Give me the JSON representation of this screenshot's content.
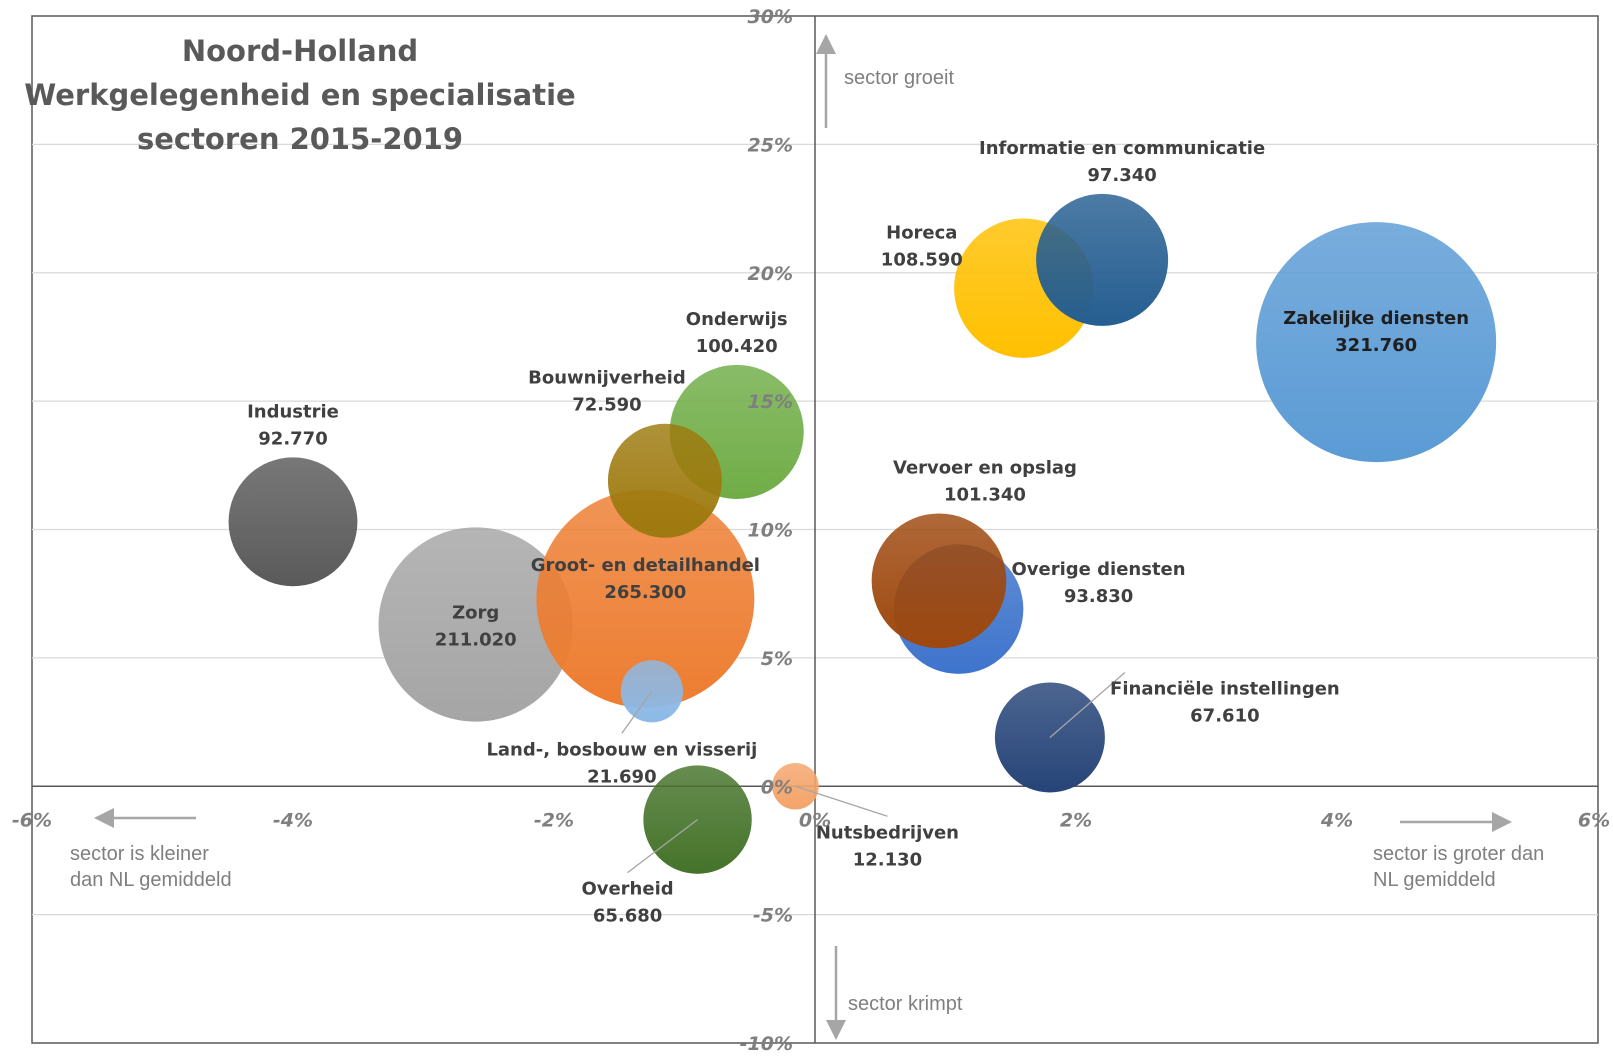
{
  "chart_data": {
    "type": "bubble",
    "title_lines": [
      "Noord-Holland",
      "Werkgelegenheid en specialisatie",
      "sectoren 2015-2019"
    ],
    "x_tick_labels": [
      "-6%",
      "-4%",
      "-2%",
      "0%",
      "2%",
      "4%",
      "6%"
    ],
    "y_tick_labels": [
      "30%",
      "25%",
      "20%",
      "15%",
      "10%",
      "5%",
      "0%",
      "-5%",
      "-10%"
    ],
    "xlim": [
      -6,
      6
    ],
    "ylim": [
      -10,
      30
    ],
    "grid": "horizontal",
    "annotations": {
      "up": "sector groeit",
      "down": "sector krimpt",
      "left_line1": "sector is kleiner",
      "left_line2": "dan NL gemiddeld",
      "right_line1": "sector is groter dan",
      "right_line2": "NL gemiddeld"
    },
    "series": [
      {
        "name": "Industrie",
        "value_label": "92.770",
        "x": -4.0,
        "y": 10.3,
        "size": 92770,
        "color": "#5a5a5a"
      },
      {
        "name": "Zorg",
        "value_label": "211.020",
        "x": -2.6,
        "y": 6.3,
        "size": 211020,
        "color": "#a5a5a5"
      },
      {
        "name": "Groot- en detailhandel",
        "value_label": "265.300",
        "x": -1.3,
        "y": 7.3,
        "size": 265300,
        "color": "#ed7d31"
      },
      {
        "name": "Onderwijs",
        "value_label": "100.420",
        "x": -0.6,
        "y": 13.8,
        "size": 100420,
        "color": "#70ad47"
      },
      {
        "name": "Bouwnijverheid",
        "value_label": "72.590",
        "x": -1.15,
        "y": 11.9,
        "size": 72590,
        "color": "#9e7a0f"
      },
      {
        "name": "Land-, bosbouw en visserij",
        "value_label": "21.690",
        "x": -1.25,
        "y": 3.7,
        "size": 21690,
        "color": "#8cb9e6"
      },
      {
        "name": "Overheid",
        "value_label": "65.680",
        "x": -0.9,
        "y": -1.3,
        "size": 65680,
        "color": "#45732a"
      },
      {
        "name": "Nutsbedrijven",
        "value_label": "12.130",
        "x": -0.15,
        "y": 0.0,
        "size": 12130,
        "color": "#f4a46a"
      },
      {
        "name": "Horeca",
        "value_label": "108.590",
        "x": 1.6,
        "y": 19.4,
        "size": 108590,
        "color": "#ffc000"
      },
      {
        "name": "Informatie en communicatie",
        "value_label": "97.340",
        "x": 2.2,
        "y": 20.5,
        "size": 97340,
        "color": "#255e91"
      },
      {
        "name": "Zakelijke diensten",
        "value_label": "321.760",
        "x": 4.3,
        "y": 17.3,
        "size": 321760,
        "color": "#5b9bd5"
      },
      {
        "name": "Overige diensten",
        "value_label": "93.830",
        "x": 1.1,
        "y": 6.9,
        "size": 93830,
        "color": "#3e74cc"
      },
      {
        "name": "Vervoer en opslag",
        "value_label": "101.340",
        "x": 0.95,
        "y": 8.0,
        "size": 101340,
        "color": "#9e480e"
      },
      {
        "name": "Financiële instellingen",
        "value_label": "67.610",
        "x": 1.8,
        "y": 1.9,
        "size": 67610,
        "color": "#264478"
      }
    ]
  }
}
